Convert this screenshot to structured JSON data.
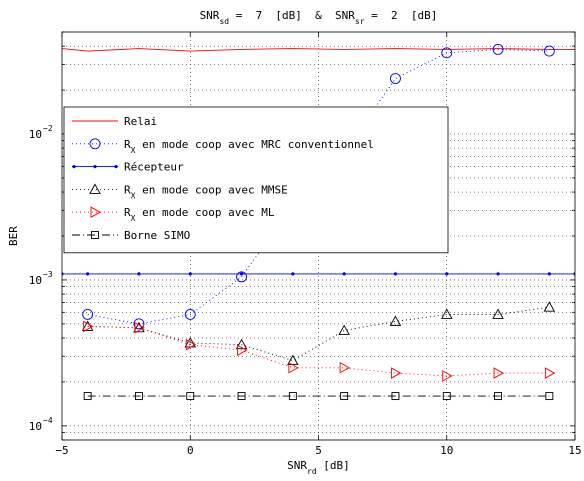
{
  "chart_data": {
    "type": "line",
    "title": {
      "parts": [
        {
          "text": "SNR"
        },
        {
          "text": "sd",
          "sub": true
        },
        {
          "text": " =  7  [dB]  &  SNR"
        },
        {
          "text": "sr",
          "sub": true
        },
        {
          "text": " =  2  [dB]"
        }
      ]
    },
    "xlabel": {
      "parts": [
        {
          "text": "SNR"
        },
        {
          "text": "rd",
          "sub": true
        },
        {
          "text": " [dB]"
        }
      ]
    },
    "ylabel": "BER",
    "xlim": [
      -5,
      15
    ],
    "ylim": [
      8e-05,
      0.05
    ],
    "yscale": "log",
    "grid": true,
    "x_ticks": [
      -5,
      0,
      5,
      10,
      15
    ],
    "x_tick_labels": [
      "−5",
      "0",
      "5",
      "10",
      "15"
    ],
    "y_ticks": [
      0.0001,
      0.001,
      0.01
    ],
    "y_tick_labels": [
      {
        "base": "10",
        "exp": "−4"
      },
      {
        "base": "10",
        "exp": "−3"
      },
      {
        "base": "10",
        "exp": "−2"
      }
    ],
    "legend_position": "upper-left",
    "series": [
      {
        "key": "relai",
        "legend": {
          "parts": [
            {
              "text": "Relai"
            }
          ]
        },
        "color": "#ff0000",
        "line": "solid",
        "marker": "none",
        "x": [
          -5,
          -4,
          -2,
          0,
          2,
          4,
          6,
          8,
          10,
          12,
          14,
          15
        ],
        "y": [
          0.0385,
          0.037,
          0.0385,
          0.037,
          0.038,
          0.0385,
          0.038,
          0.0385,
          0.038,
          0.0385,
          0.038,
          0.038
        ]
      },
      {
        "key": "mrc",
        "legend": {
          "parts": [
            {
              "text": "R"
            },
            {
              "text": "X",
              "sub": true
            },
            {
              "text": " en mode coop avec MRC conventionnel"
            }
          ]
        },
        "color": "#0000ff",
        "line": "dotted",
        "marker": "circle",
        "x": [
          -4,
          -2,
          0,
          2,
          4,
          6,
          8,
          10,
          12,
          14
        ],
        "y": [
          0.00058,
          0.0005,
          0.00058,
          0.00105,
          0.0032,
          0.0075,
          0.024,
          0.036,
          0.038,
          0.037
        ]
      },
      {
        "key": "recepteur",
        "legend": {
          "parts": [
            {
              "text": "Récepteur"
            }
          ]
        },
        "color": "#0000ff",
        "line": "solid",
        "marker": "dot",
        "x": [
          -5,
          -4,
          -2,
          0,
          2,
          4,
          6,
          8,
          10,
          12,
          14,
          15
        ],
        "y": [
          0.0011,
          0.0011,
          0.0011,
          0.0011,
          0.0011,
          0.0011,
          0.0011,
          0.0011,
          0.0011,
          0.0011,
          0.0011,
          0.0011
        ]
      },
      {
        "key": "mmse",
        "legend": {
          "parts": [
            {
              "text": "R"
            },
            {
              "text": "X",
              "sub": true
            },
            {
              "text": " en mode coop avec MMSE"
            }
          ]
        },
        "color": "#000000",
        "line": "dotted",
        "marker": "triangle-up",
        "x": [
          -4,
          -2,
          0,
          2,
          4,
          6,
          8,
          10,
          12,
          14
        ],
        "y": [
          0.00048,
          0.00047,
          0.00037,
          0.00036,
          0.00028,
          0.00045,
          0.00052,
          0.00058,
          0.00058,
          0.00065
        ]
      },
      {
        "key": "ml",
        "legend": {
          "parts": [
            {
              "text": "R"
            },
            {
              "text": "X",
              "sub": true
            },
            {
              "text": " en mode coop avec ML"
            }
          ]
        },
        "color": "#ff0000",
        "line": "dotted",
        "marker": "triangle-right",
        "x": [
          -4,
          -2,
          0,
          2,
          4,
          6,
          8,
          10,
          12,
          14
        ],
        "y": [
          0.00048,
          0.00047,
          0.00036,
          0.00033,
          0.00025,
          0.00025,
          0.00023,
          0.00022,
          0.00023,
          0.00023
        ]
      },
      {
        "key": "simo",
        "legend": {
          "parts": [
            {
              "text": "Borne SIMO"
            }
          ]
        },
        "color": "#000000",
        "line": "dashdot",
        "marker": "square",
        "x": [
          -4,
          -2,
          0,
          2,
          4,
          6,
          8,
          10,
          12,
          14
        ],
        "y": [
          0.00016,
          0.00016,
          0.00016,
          0.00016,
          0.00016,
          0.00016,
          0.00016,
          0.00016,
          0.00016,
          0.00016
        ]
      }
    ]
  }
}
